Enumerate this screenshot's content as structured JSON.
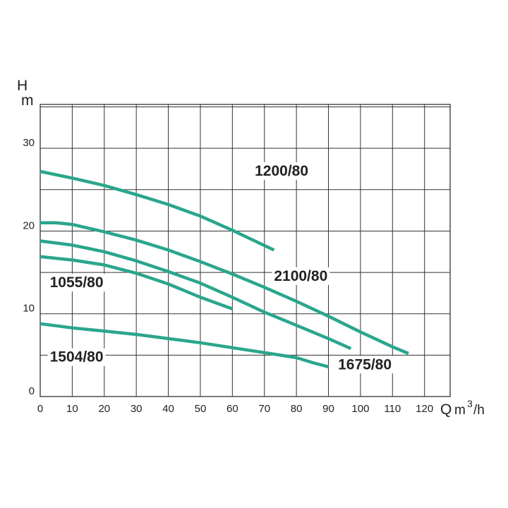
{
  "chart_data": {
    "type": "line",
    "x_axis": {
      "range": [
        0,
        128
      ],
      "grid_step": 10,
      "ticks": [
        0,
        10,
        20,
        30,
        40,
        50,
        60,
        70,
        80,
        90,
        100,
        110,
        120
      ],
      "label_letter": "Q",
      "label_unit": "m",
      "label_unit_exp": "3",
      "label_unit_tail": "/h"
    },
    "y_axis": {
      "range": [
        0,
        35.3
      ],
      "grid_step": 5,
      "ticks": [
        0,
        10,
        20,
        30
      ],
      "label_top": "H",
      "label_bottom": "m"
    },
    "grid": true,
    "line_color": "#2aa68c",
    "series": [
      {
        "name": "1200/80",
        "x": [
          0,
          10,
          20,
          30,
          40,
          50,
          60,
          67,
          73
        ],
        "y": [
          27.2,
          26.4,
          25.5,
          24.4,
          23.2,
          21.8,
          20.1,
          18.8,
          17.7
        ]
      },
      {
        "name": "2100/80",
        "x": [
          0,
          5,
          10,
          20,
          30,
          40,
          50,
          60,
          70,
          80,
          90,
          100,
          110,
          115
        ],
        "y": [
          21.0,
          21.0,
          20.8,
          19.9,
          18.9,
          17.7,
          16.3,
          14.8,
          13.2,
          11.5,
          9.7,
          7.8,
          6.0,
          5.2
        ]
      },
      {
        "name": "1675/80",
        "x": [
          0,
          10,
          20,
          30,
          40,
          50,
          60,
          70,
          80,
          90,
          97
        ],
        "y": [
          18.8,
          18.3,
          17.5,
          16.4,
          15.1,
          13.7,
          12.0,
          10.2,
          8.6,
          7.0,
          5.8
        ]
      },
      {
        "name": "1055/80",
        "x": [
          0,
          10,
          20,
          30,
          40,
          50,
          60
        ],
        "y": [
          16.9,
          16.5,
          15.9,
          14.9,
          13.6,
          12.0,
          10.6
        ]
      },
      {
        "name": "1504/80",
        "x": [
          0,
          10,
          20,
          30,
          40,
          50,
          60,
          70,
          80,
          85,
          90
        ],
        "y": [
          8.8,
          8.3,
          7.9,
          7.5,
          7.0,
          6.5,
          5.9,
          5.3,
          4.7,
          4.1,
          3.6
        ]
      }
    ]
  }
}
